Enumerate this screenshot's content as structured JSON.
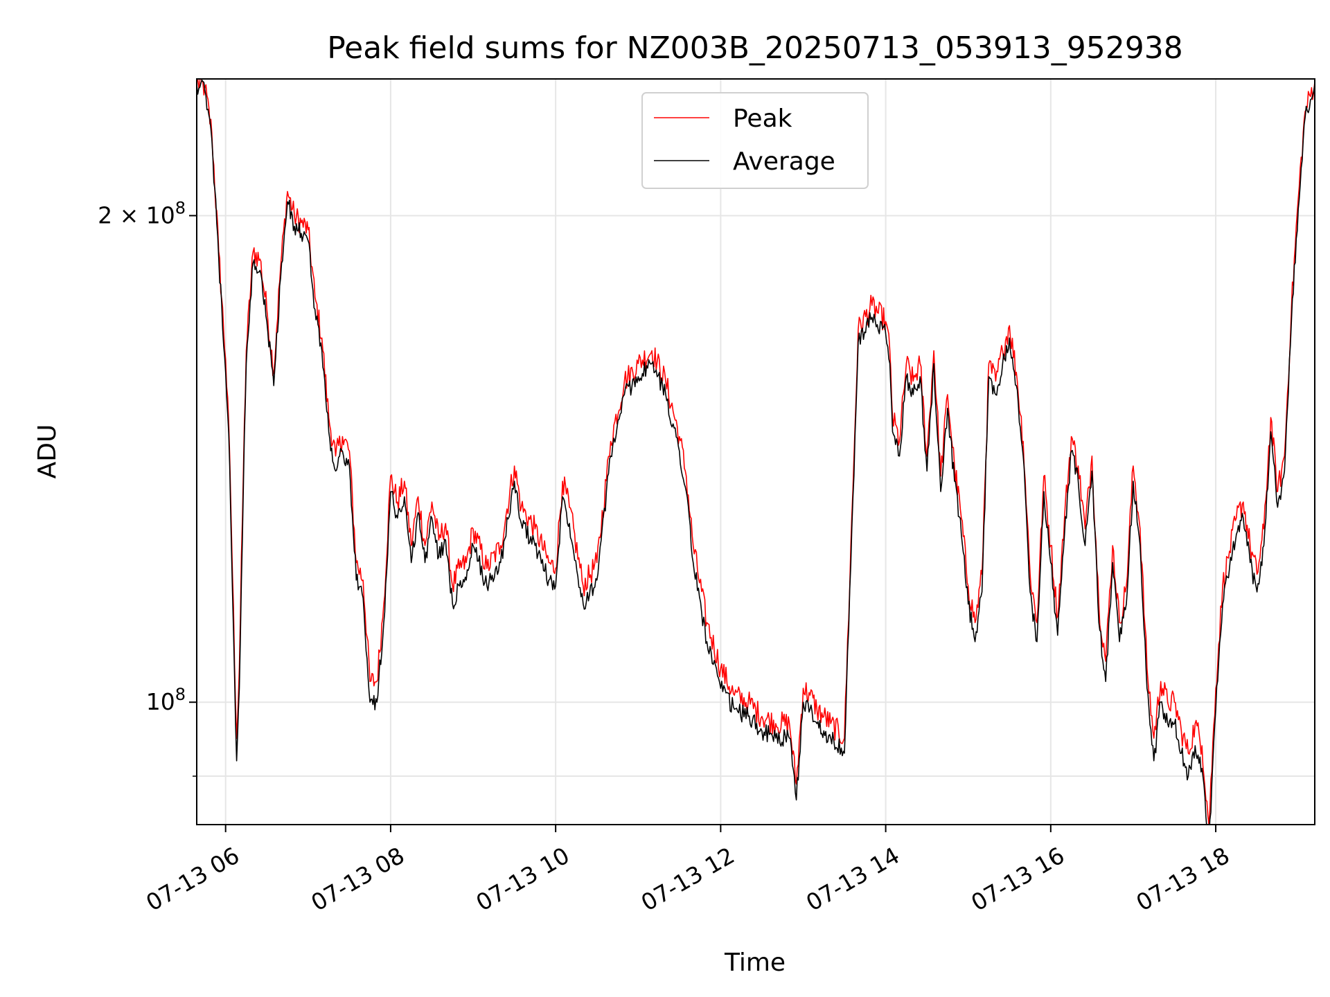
{
  "chart_data": {
    "type": "line",
    "title": "Peak field sums for NZ003B_20250713_053913_952938",
    "xlabel": "Time",
    "ylabel": "ADU",
    "yscale": "log",
    "grid": true,
    "legend_placement": "upper center",
    "xlim": [
      "07-13 05:39",
      "07-13 19:12"
    ],
    "ylim": [
      84000000,
      243000000
    ],
    "x_ticks": [
      {
        "x": "07-13 06:00",
        "label": "07-13 06"
      },
      {
        "x": "07-13 08:00",
        "label": "07-13 08"
      },
      {
        "x": "07-13 10:00",
        "label": "07-13 10"
      },
      {
        "x": "07-13 12:00",
        "label": "07-13 12"
      },
      {
        "x": "07-13 14:00",
        "label": "07-13 14"
      },
      {
        "x": "07-13 16:00",
        "label": "07-13 16"
      },
      {
        "x": "07-13 18:00",
        "label": "07-13 18"
      }
    ],
    "y_major_ticks": [
      {
        "y": 100000000,
        "label": "10",
        "exp": "8"
      },
      {
        "y": 200000000,
        "label": "2 × 10",
        "exp": "8"
      }
    ],
    "y_minor_ticks": [
      90000000
    ],
    "x": [
      "07-13 05:39",
      "07-13 05:45",
      "07-13 05:50",
      "07-13 05:55",
      "07-13 06:00",
      "07-13 06:03",
      "07-13 06:05",
      "07-13 06:08",
      "07-13 06:10",
      "07-13 06:13",
      "07-13 06:15",
      "07-13 06:20",
      "07-13 06:25",
      "07-13 06:30",
      "07-13 06:35",
      "07-13 06:40",
      "07-13 06:45",
      "07-13 06:50",
      "07-13 06:55",
      "07-13 07:00",
      "07-13 07:05",
      "07-13 07:10",
      "07-13 07:15",
      "07-13 07:20",
      "07-13 07:25",
      "07-13 07:30",
      "07-13 07:35",
      "07-13 07:40",
      "07-13 07:45",
      "07-13 07:50",
      "07-13 07:55",
      "07-13 08:00",
      "07-13 08:05",
      "07-13 08:10",
      "07-13 08:15",
      "07-13 08:20",
      "07-13 08:25",
      "07-13 08:30",
      "07-13 08:35",
      "07-13 08:40",
      "07-13 08:45",
      "07-13 08:50",
      "07-13 08:55",
      "07-13 09:00",
      "07-13 09:10",
      "07-13 09:20",
      "07-13 09:30",
      "07-13 09:35",
      "07-13 09:45",
      "07-13 09:55",
      "07-13 10:00",
      "07-13 10:05",
      "07-13 10:10",
      "07-13 10:20",
      "07-13 10:30",
      "07-13 10:40",
      "07-13 10:50",
      "07-13 11:00",
      "07-13 11:10",
      "07-13 11:20",
      "07-13 11:30",
      "07-13 11:35",
      "07-13 11:40",
      "07-13 11:50",
      "07-13 12:00",
      "07-13 12:10",
      "07-13 12:20",
      "07-13 12:30",
      "07-13 12:40",
      "07-13 12:50",
      "07-13 12:55",
      "07-13 13:00",
      "07-13 13:05",
      "07-13 13:10",
      "07-13 13:15",
      "07-13 13:20",
      "07-13 13:30",
      "07-13 13:40",
      "07-13 13:50",
      "07-13 14:00",
      "07-13 14:03",
      "07-13 14:05",
      "07-13 14:10",
      "07-13 14:15",
      "07-13 14:20",
      "07-13 14:25",
      "07-13 14:30",
      "07-13 14:35",
      "07-13 14:40",
      "07-13 14:45",
      "07-13 14:50",
      "07-13 14:55",
      "07-13 15:00",
      "07-13 15:05",
      "07-13 15:10",
      "07-13 15:15",
      "07-13 15:20",
      "07-13 15:25",
      "07-13 15:30",
      "07-13 15:35",
      "07-13 15:40",
      "07-13 15:45",
      "07-13 15:50",
      "07-13 15:55",
      "07-13 16:00",
      "07-13 16:05",
      "07-13 16:10",
      "07-13 16:15",
      "07-13 16:20",
      "07-13 16:25",
      "07-13 16:30",
      "07-13 16:35",
      "07-13 16:40",
      "07-13 16:45",
      "07-13 16:50",
      "07-13 16:55",
      "07-13 17:00",
      "07-13 17:05",
      "07-13 17:10",
      "07-13 17:15",
      "07-13 17:20",
      "07-13 17:25",
      "07-13 17:30",
      "07-13 17:35",
      "07-13 17:40",
      "07-13 17:45",
      "07-13 17:50",
      "07-13 17:55",
      "07-13 18:00",
      "07-13 18:05",
      "07-13 18:10",
      "07-13 18:15",
      "07-13 18:20",
      "07-13 18:25",
      "07-13 18:30",
      "07-13 18:35",
      "07-13 18:40",
      "07-13 18:45",
      "07-13 18:50",
      "07-13 18:55",
      "07-13 19:00",
      "07-13 19:05",
      "07-13 19:12"
    ],
    "series": [
      {
        "name": "Peak",
        "color": "#ff0000",
        "values": [
          242000000,
          240000000,
          225000000,
          190000000,
          163000000,
          142000000,
          120000000,
          95000000,
          105000000,
          140000000,
          165000000,
          190000000,
          188000000,
          175000000,
          160000000,
          186000000,
          207000000,
          200000000,
          198000000,
          196000000,
          178000000,
          168000000,
          150000000,
          142000000,
          146000000,
          143000000,
          122000000,
          119000000,
          103000000,
          103000000,
          115000000,
          138000000,
          133000000,
          137000000,
          125000000,
          134000000,
          125000000,
          133000000,
          126000000,
          129000000,
          118000000,
          121000000,
          122000000,
          128000000,
          121000000,
          125000000,
          140000000,
          132000000,
          128000000,
          122000000,
          121000000,
          137000000,
          132000000,
          118000000,
          122000000,
          145000000,
          158000000,
          162000000,
          165000000,
          158000000,
          146000000,
          138000000,
          125000000,
          112000000,
          105000000,
          101000000,
          100000000,
          98000000,
          97000000,
          97000000,
          89000000,
          102000000,
          101000000,
          99000000,
          98000000,
          97000000,
          95000000,
          170000000,
          176000000,
          172000000,
          165000000,
          150000000,
          145000000,
          162000000,
          158000000,
          162000000,
          142000000,
          165000000,
          138000000,
          155000000,
          140000000,
          130000000,
          118000000,
          112000000,
          120000000,
          162000000,
          158000000,
          165000000,
          171000000,
          160000000,
          145000000,
          120000000,
          112000000,
          138000000,
          125000000,
          113000000,
          130000000,
          146000000,
          140000000,
          128000000,
          142000000,
          115000000,
          106000000,
          125000000,
          112000000,
          118000000,
          140000000,
          128000000,
          105000000,
          95000000,
          103000000,
          100000000,
          100000000,
          96000000,
          93000000,
          97000000,
          94000000,
          84000000,
          102000000,
          118000000,
          124000000,
          130000000,
          133000000,
          125000000,
          120000000,
          128000000,
          150000000,
          135000000,
          142000000,
          175000000,
          205000000,
          232000000,
          242000000
        ],
        "note_omit": false
      },
      {
        "name": "Average",
        "color": "#000000",
        "values": [
          241000000,
          239000000,
          223000000,
          188000000,
          160000000,
          140000000,
          117000000,
          92000000,
          102000000,
          137000000,
          162000000,
          187000000,
          185000000,
          172000000,
          157000000,
          183000000,
          204000000,
          197000000,
          195000000,
          193000000,
          175000000,
          165000000,
          147000000,
          139000000,
          143000000,
          140000000,
          119000000,
          116000000,
          100000000,
          100000000,
          112000000,
          135000000,
          130000000,
          134000000,
          122000000,
          131000000,
          122000000,
          130000000,
          123000000,
          126000000,
          115000000,
          118000000,
          119000000,
          125000000,
          118000000,
          122000000,
          137000000,
          129000000,
          125000000,
          119000000,
          118000000,
          134000000,
          129000000,
          115000000,
          119000000,
          142000000,
          155000000,
          159000000,
          162000000,
          155000000,
          143000000,
          135000000,
          122000000,
          109000000,
          102000000,
          99000000,
          98000000,
          96000000,
          95000000,
          95000000,
          87000000,
          100000000,
          99000000,
          97000000,
          96000000,
          95000000,
          93000000,
          167000000,
          173000000,
          169000000,
          162000000,
          147000000,
          142000000,
          159000000,
          155000000,
          159000000,
          139000000,
          162000000,
          135000000,
          152000000,
          137000000,
          127000000,
          115000000,
          109000000,
          117000000,
          159000000,
          155000000,
          162000000,
          168000000,
          157000000,
          142000000,
          117000000,
          109000000,
          135000000,
          122000000,
          110000000,
          127000000,
          143000000,
          137000000,
          125000000,
          139000000,
          112000000,
          103000000,
          122000000,
          109000000,
          115000000,
          137000000,
          125000000,
          102000000,
          92000000,
          100000000,
          97000000,
          97000000,
          93000000,
          90000000,
          94000000,
          91000000,
          82000000,
          99000000,
          115000000,
          121000000,
          127000000,
          130000000,
          122000000,
          117000000,
          125000000,
          147000000,
          132000000,
          139000000,
          172000000,
          202000000,
          230000000,
          241000000
        ]
      }
    ]
  }
}
